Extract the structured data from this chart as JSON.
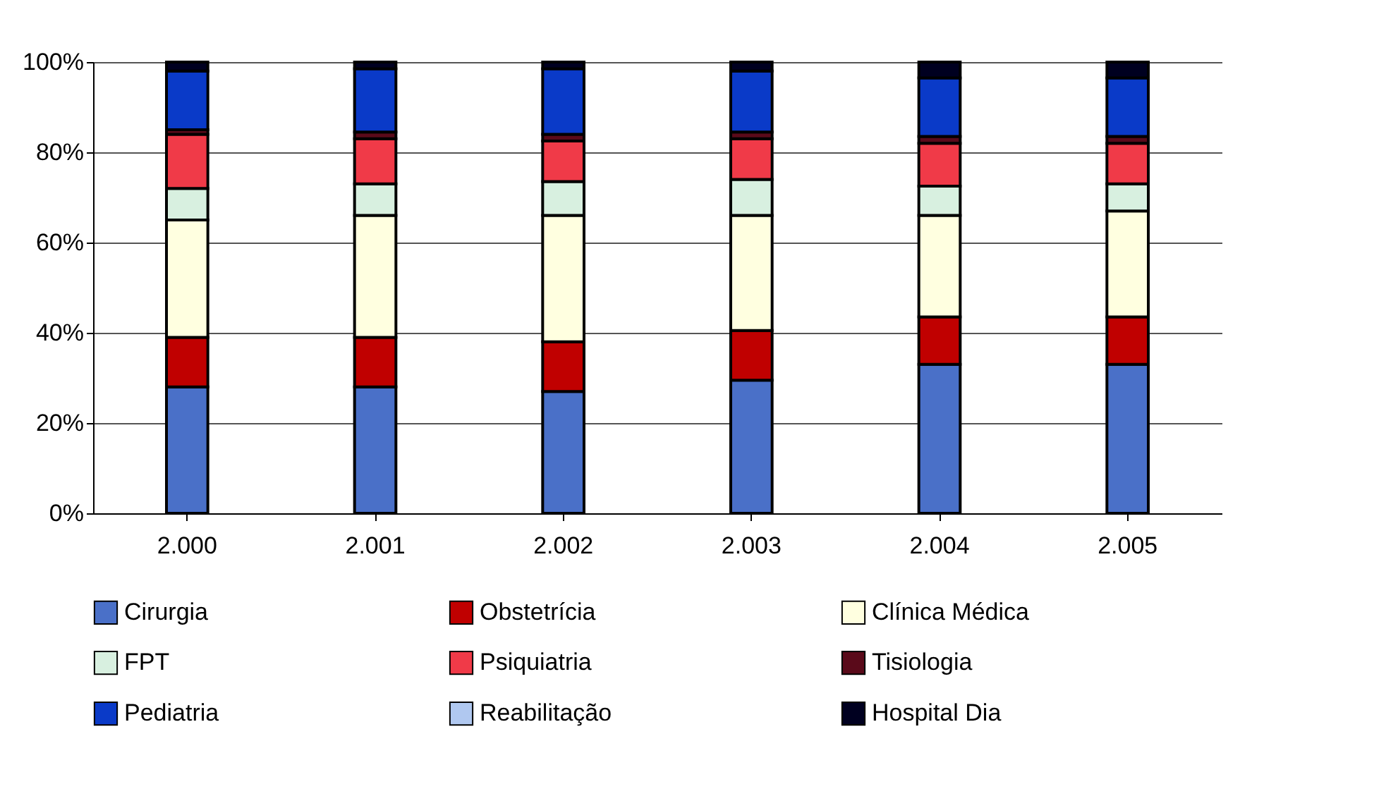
{
  "chart_data": {
    "type": "bar",
    "stacked": true,
    "categories": [
      "2.000",
      "2.001",
      "2.002",
      "2.003",
      "2.004",
      "2.005"
    ],
    "series": [
      {
        "name": "Cirurgia",
        "color": "#4a70c8",
        "values": [
          28,
          28,
          27,
          29.5,
          33,
          33
        ]
      },
      {
        "name": "Obstetrícia",
        "color": "#c00000",
        "values": [
          11,
          11,
          11,
          11,
          10.5,
          10.5
        ]
      },
      {
        "name": "Clínica Médica",
        "color": "#ffffe0",
        "values": [
          26,
          27,
          28,
          25.5,
          22.5,
          23.5
        ]
      },
      {
        "name": "FPT",
        "color": "#d8f0e0",
        "values": [
          7,
          7,
          7.5,
          8,
          6.5,
          6
        ]
      },
      {
        "name": "Psiquiatria",
        "color": "#f03a48",
        "values": [
          12,
          10,
          9,
          9,
          9.5,
          9
        ]
      },
      {
        "name": "Tisiologia",
        "color": "#5a0a1a",
        "values": [
          1,
          1.5,
          1.5,
          1.5,
          1.5,
          1.5
        ]
      },
      {
        "name": "Pediatria",
        "color": "#0a3ac8",
        "values": [
          13,
          14,
          14.5,
          13.5,
          13,
          13
        ]
      },
      {
        "name": "Reabilitação",
        "color": "#b0c8f0",
        "values": [
          0,
          0,
          0,
          0,
          0,
          0
        ]
      },
      {
        "name": "Hospital Dia",
        "color": "#000020",
        "values": [
          2,
          1.5,
          1.5,
          2,
          3.5,
          3.5
        ]
      }
    ],
    "ylim": [
      0,
      100
    ],
    "yticks": [
      {
        "value": 0,
        "label": "0%"
      },
      {
        "value": 20,
        "label": "20%"
      },
      {
        "value": 40,
        "label": "40%"
      },
      {
        "value": 60,
        "label": "60%"
      },
      {
        "value": 80,
        "label": "80%"
      },
      {
        "value": 100,
        "label": "100%"
      }
    ],
    "grid": "y",
    "legend": "bottom"
  }
}
